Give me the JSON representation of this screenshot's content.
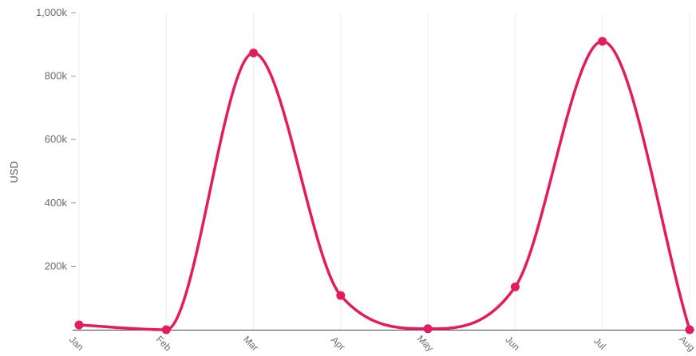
{
  "chart_data": {
    "type": "line",
    "title": "",
    "xlabel": "",
    "ylabel": "USD",
    "categories": [
      "Jan",
      "Feb",
      "Mar",
      "Apr",
      "May",
      "Jun",
      "Jul",
      "Aug"
    ],
    "series": [
      {
        "values": [
          15000,
          0,
          873000,
          108000,
          3000,
          135000,
          910000,
          0
        ],
        "color": "#e31c5f"
      }
    ],
    "ylim": [
      0,
      1000000
    ],
    "yticks": [
      {
        "value": 200000,
        "label": "200k"
      },
      {
        "value": 400000,
        "label": "400k"
      },
      {
        "value": 600000,
        "label": "600k"
      },
      {
        "value": 800000,
        "label": "800k"
      },
      {
        "value": 1000000,
        "label": "1,000k"
      }
    ],
    "grid": {
      "vertical": true,
      "horizontal": false,
      "color": "#ededed"
    },
    "curve": "smooth",
    "legend": "none"
  }
}
